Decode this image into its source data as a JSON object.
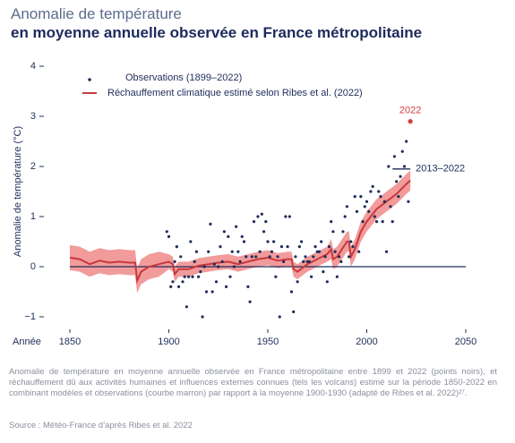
{
  "chart_data": {
    "type": "scatter-band",
    "title": "Anomalie de température",
    "subtitle": "en moyenne annuelle observée en France métropolitaine",
    "y_label": "Anomalie de température (°C)",
    "x_label": "Année",
    "xlim": [
      1850,
      2050
    ],
    "xticks": [
      1850,
      1900,
      1950,
      2000,
      2050
    ],
    "ylim": [
      -1,
      4
    ],
    "yticks": [
      {
        "value": -1,
        "label": "−1"
      },
      0,
      1,
      2,
      3,
      4
    ],
    "legend": "top-left",
    "observations": {
      "name": "Observations (1899–2022)",
      "color": "#1f2d5a",
      "x": [
        1899,
        1900,
        1901,
        1902,
        1903,
        1904,
        1905,
        1906,
        1907,
        1908,
        1909,
        1910,
        1911,
        1912,
        1913,
        1914,
        1915,
        1916,
        1917,
        1918,
        1919,
        1920,
        1921,
        1922,
        1923,
        1924,
        1925,
        1926,
        1927,
        1928,
        1929,
        1930,
        1931,
        1932,
        1933,
        1934,
        1935,
        1936,
        1937,
        1938,
        1939,
        1940,
        1941,
        1942,
        1943,
        1944,
        1945,
        1946,
        1947,
        1948,
        1949,
        1950,
        1951,
        1952,
        1953,
        1954,
        1955,
        1956,
        1957,
        1958,
        1959,
        1960,
        1961,
        1962,
        1963,
        1964,
        1965,
        1966,
        1967,
        1968,
        1969,
        1970,
        1971,
        1972,
        1973,
        1974,
        1975,
        1976,
        1977,
        1978,
        1979,
        1980,
        1981,
        1982,
        1983,
        1984,
        1985,
        1986,
        1987,
        1988,
        1989,
        1990,
        1991,
        1992,
        1993,
        1994,
        1995,
        1996,
        1997,
        1998,
        1999,
        2000,
        2001,
        2002,
        2003,
        2004,
        2005,
        2006,
        2007,
        2008,
        2009,
        2010,
        2011,
        2012,
        2013,
        2014,
        2015,
        2016,
        2017,
        2018,
        2019,
        2020,
        2021,
        2022
      ],
      "values": [
        0.7,
        0.6,
        -0.4,
        -0.3,
        0.1,
        0.4,
        -0.4,
        0.2,
        -0.3,
        -0.2,
        -0.8,
        -0.2,
        0.5,
        -0.2,
        0.1,
        0.3,
        -0.2,
        -0.1,
        -1.0,
        0.0,
        -0.5,
        0.3,
        0.85,
        -0.5,
        0.05,
        -0.3,
        0.0,
        0.4,
        0.1,
        0.7,
        -0.4,
        0.6,
        -0.2,
        0.3,
        0.0,
        0.8,
        0.3,
        0.1,
        0.6,
        0.5,
        0.2,
        -0.4,
        -0.7,
        0.2,
        0.9,
        0.2,
        1.0,
        0.3,
        1.05,
        0.7,
        0.9,
        0.5,
        0.2,
        0.3,
        0.5,
        -0.2,
        0.2,
        -1.0,
        0.4,
        0.1,
        1.0,
        0.4,
        1.0,
        -0.5,
        -0.9,
        0.2,
        -0.3,
        0.4,
        0.5,
        0.1,
        0.2,
        0.1,
        0.1,
        -0.2,
        0.2,
        0.4,
        0.3,
        0.3,
        0.5,
        -0.1,
        0.2,
        -0.3,
        0.4,
        0.9,
        0.7,
        0.3,
        -0.2,
        0.2,
        0.1,
        0.7,
        1.0,
        1.2,
        0.2,
        0.5,
        0.4,
        1.4,
        1.1,
        0.3,
        1.4,
        0.9,
        1.2,
        1.3,
        1.1,
        1.5,
        1.6,
        1.0,
        0.9,
        1.5,
        1.4,
        0.9,
        1.3,
        0.3,
        2.0,
        1.2,
        0.9,
        2.2,
        1.7,
        1.4,
        1.8,
        2.3,
        2.0,
        2.5,
        1.3,
        2.9
      ]
    },
    "estimate": {
      "name": "Réchauffement climatique estimé selon Ribes et al. (2022)",
      "color": "#c8383c",
      "band_color": "#f08a8a",
      "x": [
        1850,
        1855,
        1860,
        1865,
        1870,
        1875,
        1880,
        1883,
        1884,
        1886,
        1890,
        1895,
        1900,
        1902,
        1903,
        1905,
        1910,
        1915,
        1920,
        1925,
        1930,
        1935,
        1940,
        1945,
        1950,
        1955,
        1960,
        1962,
        1963,
        1965,
        1970,
        1975,
        1980,
        1982,
        1983,
        1985,
        1990,
        1991,
        1992,
        1994,
        1997,
        2000,
        2005,
        2010,
        2015,
        2020,
        2022
      ],
      "values": [
        0.18,
        0.15,
        0.05,
        0.12,
        0.08,
        0.1,
        0.08,
        0.08,
        -0.28,
        -0.1,
        0.0,
        0.05,
        0.1,
        0.05,
        -0.15,
        -0.05,
        -0.05,
        0.02,
        0.05,
        0.08,
        0.1,
        0.05,
        0.1,
        0.15,
        0.18,
        0.12,
        0.15,
        0.15,
        -0.05,
        -0.1,
        0.05,
        0.15,
        0.25,
        0.35,
        0.15,
        0.2,
        0.5,
        0.5,
        0.2,
        0.35,
        0.7,
        0.9,
        1.15,
        1.3,
        1.45,
        1.65,
        1.72
      ],
      "upper": [
        0.43,
        0.4,
        0.3,
        0.37,
        0.33,
        0.35,
        0.33,
        0.33,
        -0.03,
        0.15,
        0.25,
        0.3,
        0.25,
        0.2,
        0.0,
        0.1,
        0.1,
        0.17,
        0.2,
        0.23,
        0.25,
        0.2,
        0.25,
        0.3,
        0.33,
        0.27,
        0.3,
        0.3,
        0.1,
        0.05,
        0.2,
        0.3,
        0.4,
        0.55,
        0.35,
        0.4,
        0.7,
        0.7,
        0.4,
        0.55,
        0.9,
        1.1,
        1.35,
        1.5,
        1.65,
        1.85,
        1.92
      ],
      "lower": [
        -0.07,
        -0.1,
        -0.2,
        -0.13,
        -0.17,
        -0.15,
        -0.17,
        -0.17,
        -0.53,
        -0.35,
        -0.25,
        -0.2,
        -0.05,
        -0.1,
        -0.3,
        -0.2,
        -0.2,
        -0.13,
        -0.1,
        -0.07,
        -0.05,
        -0.1,
        -0.05,
        0.0,
        0.03,
        -0.03,
        0.0,
        0.0,
        -0.2,
        -0.25,
        -0.1,
        0.0,
        0.1,
        0.15,
        -0.05,
        0.0,
        0.3,
        0.3,
        0.0,
        0.15,
        0.5,
        0.7,
        0.95,
        1.1,
        1.25,
        1.45,
        1.52
      ]
    },
    "annotations": [
      {
        "text": "2022",
        "x": 2022,
        "color": "#d43d3d"
      },
      {
        "text": "2013–2022",
        "x": [
          2013,
          2022
        ],
        "y": 1.95
      }
    ],
    "caption": "Anomalie de température en moyenne annuelle observée en France métropolitaine entre 1899 et 2022 (points noirs), et réchauffement dû aux activités humaines et influences externes connues (tels les volcans) estimé sur la période 1850-2022 en combinant modèles et observations (courbe marron) par rapport à la moyenne 1900-1930 (adapté de Ribes et al. 2022)²⁷.",
    "source": "Source : Météo-France d’après Ribes et al. 2022"
  }
}
